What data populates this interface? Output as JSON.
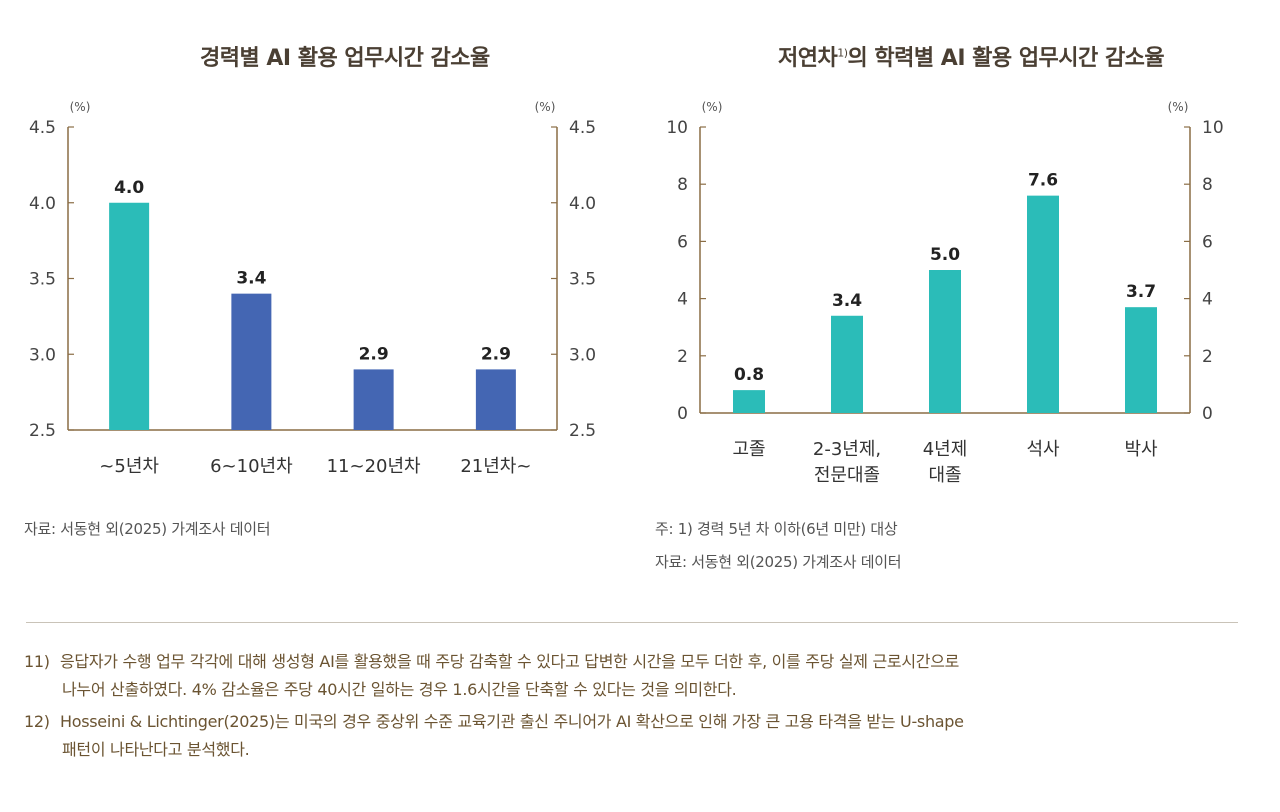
{
  "chart_data": [
    {
      "type": "bar",
      "title": "경력별 AI 활용 업무시간 감소율",
      "unit_left": "(%)",
      "unit_right": "(%)",
      "categories": [
        "~5년차",
        "6~10년차",
        "11~20년차",
        "21년차~"
      ],
      "values": [
        4.0,
        3.4,
        2.9,
        2.9
      ],
      "value_labels": [
        "4.0",
        "3.4",
        "2.9",
        "2.9"
      ],
      "bar_colors": [
        "#2bbcb8",
        "#4466b3",
        "#4466b3",
        "#4466b3"
      ],
      "ylim": [
        2.5,
        4.5
      ],
      "yticks": [
        "2.5",
        "3.0",
        "3.5",
        "4.0",
        "4.5"
      ],
      "source": "자료: 서동현 외(2025) 가계조사 데이터"
    },
    {
      "type": "bar",
      "title_main": "저연차",
      "title_sup": "1)",
      "title_rest": "의 학력별 AI 활용 업무시간 감소율",
      "unit_left": "(%)",
      "unit_right": "(%)",
      "categories": [
        [
          "고졸"
        ],
        [
          "2-3년제,",
          "전문대졸"
        ],
        [
          "4년제",
          "대졸"
        ],
        [
          "석사"
        ],
        [
          "박사"
        ]
      ],
      "values": [
        0.8,
        3.4,
        5.0,
        7.6,
        3.7
      ],
      "value_labels": [
        "0.8",
        "3.4",
        "5.0",
        "7.6",
        "3.7"
      ],
      "bar_color": "#2bbcb8",
      "ylim": [
        0,
        10
      ],
      "yticks": [
        "0",
        "2",
        "4",
        "6",
        "8",
        "10"
      ],
      "note": "주: 1) 경력 5년 차 이하(6년 미만) 대상",
      "source": "자료: 서동현 외(2025) 가계조사 데이터"
    }
  ],
  "footnotes": [
    {
      "num": "11)",
      "line1": "응답자가 수행 업무 각각에 대해 생성형 AI를 활용했을 때 주당 감축할 수 있다고 답변한 시간을 모두 더한 후, 이를 주당 실제 근로시간으로",
      "line2": "나누어 산출하였다. 4% 감소율은 주당 40시간 일하는 경우 1.6시간을 단축할 수 있다는 것을 의미한다."
    },
    {
      "num": "12)",
      "line1": "Hosseini & Lichtinger(2025)는 미국의 경우 중상위 수준 교육기관 출신 주니어가 AI 확산으로 인해 가장 큰 고용 타격을 받는 U-shape",
      "line2": "패턴이 나타난다고 분석했다."
    }
  ]
}
